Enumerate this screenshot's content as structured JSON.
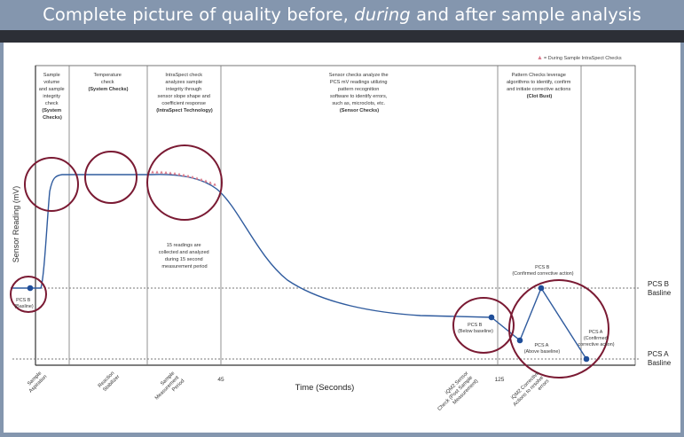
{
  "title": {
    "part1": "Complete picture of quality before,",
    "part2": "during",
    "part3": "and after sample analysis"
  },
  "legend": {
    "marker": "▲",
    "label": "= During Sample IntraSpect Checks"
  },
  "axes": {
    "ylabel": "Sensor Reading (mV)",
    "xlabel": "Time (Seconds)",
    "ticks": [
      "45",
      "125"
    ]
  },
  "baselines": {
    "pcs_b": [
      "PCS B",
      "Basline"
    ],
    "pcs_a": [
      "PCS A",
      "Basline"
    ]
  },
  "phases": [
    {
      "lines": [
        "Sample",
        "volume",
        "and sample",
        "integrity",
        "check"
      ],
      "bold": [
        "(System",
        "Checks)"
      ]
    },
    {
      "lines": [
        "Temperature",
        "check"
      ],
      "bold": [
        "(System Checks)"
      ]
    },
    {
      "lines": [
        "IntraSpect check",
        "analyzes sample",
        "integrity through",
        "sensor slope shape and",
        "coefficient response"
      ],
      "bold": [
        "(IntraSpect Technology)"
      ]
    },
    {
      "lines": [
        "Sensor checks analyze the",
        "PCS mV readings utilizing",
        "pattern recognition",
        "software to identify errors,",
        "such as, microclots, etc."
      ],
      "bold": [
        "(Sensor Checks)"
      ]
    },
    {
      "lines": [
        "Pattern Checks leverage",
        "algorithms to identify, confirm",
        "and initiate corrective actions"
      ],
      "bold": [
        "(Clot Bust)"
      ]
    }
  ],
  "notes": {
    "readings": [
      "15 readings are",
      "collected and analyzed",
      "during 15 second",
      "measurement period"
    ]
  },
  "points": {
    "pcs_b_start": [
      "PCS B",
      "(Basline)"
    ],
    "pcs_b_below": [
      "PCS B",
      "(Below baseline)"
    ],
    "pcs_a_above": [
      "PCS A",
      "(Above baseline)"
    ],
    "pcs_b_confirmed": [
      "PCS B",
      "(Confirmed corrective action)"
    ],
    "pcs_a_confirmed": [
      "PCS A",
      "(Confirmed",
      "corrective action)"
    ]
  },
  "x_events": [
    [
      "Sample",
      "Aspiration"
    ],
    [
      "Reaction",
      "Stabilizer"
    ],
    [
      "Sample",
      "Measurement",
      "Period"
    ],
    [
      "iQM2 Sensor",
      "Check (Post Sample",
      "Measurement)"
    ],
    [
      "iQM2 Corrective",
      "Actions to resolve",
      "errors"
    ]
  ],
  "colors": {
    "curve": "#2f5b9e",
    "point": "#1f4e99",
    "circle": "#7a1a33",
    "marker": "#d97b8c",
    "banner": "#8496ae"
  }
}
